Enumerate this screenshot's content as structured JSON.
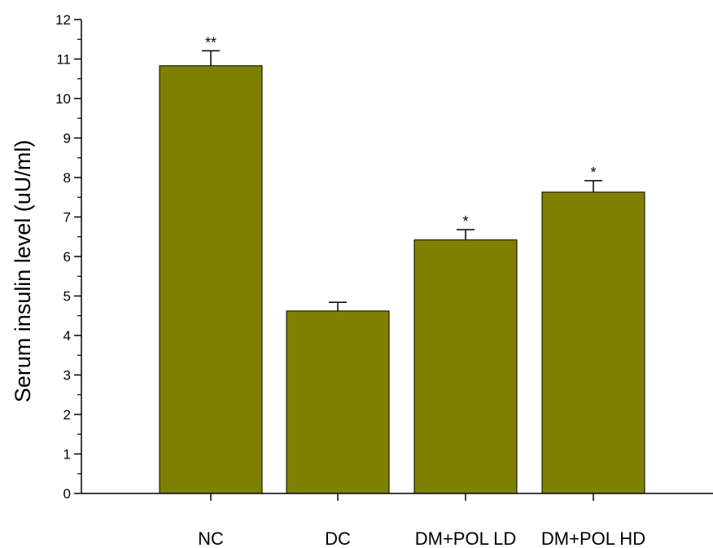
{
  "chart_data": {
    "type": "bar",
    "title": "",
    "xlabel": "",
    "ylabel": "Serum insulin level (uU/ml)",
    "categories": [
      "NC",
      "DC",
      "DM+POL LD",
      "DM+POL HD"
    ],
    "values": [
      10.83,
      4.62,
      6.42,
      7.63
    ],
    "errors": [
      0.38,
      0.22,
      0.26,
      0.29
    ],
    "significance": [
      "**",
      "",
      "*",
      "*"
    ],
    "ylim": [
      0,
      12
    ],
    "y_major_ticks": [
      0,
      1,
      2,
      3,
      4,
      5,
      6,
      7,
      8,
      9,
      10,
      11,
      12
    ],
    "y_minor_step": 0.5,
    "grid": false,
    "legend": "none",
    "bar_color": "#808000",
    "bar_edge_color": "#000000"
  }
}
